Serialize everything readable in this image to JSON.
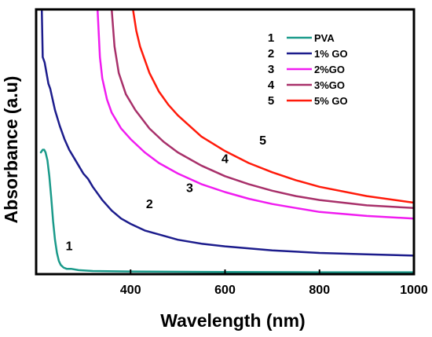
{
  "chart_data": {
    "type": "line",
    "xlabel": "Wavelength (nm)",
    "ylabel": "Absorbance (a.u)",
    "xlim": [
      200,
      1000
    ],
    "ylim": [
      0,
      1
    ],
    "x_ticks": [
      400,
      600,
      800,
      1000
    ],
    "y_ticks_shown": false,
    "grid": false,
    "legend_position": "top-right",
    "series": [
      {
        "label": "1",
        "name": "PVA",
        "color": "#1a9a8a",
        "points": [
          [
            210,
            0.46
          ],
          [
            214,
            0.47
          ],
          [
            217,
            0.47
          ],
          [
            220,
            0.46
          ],
          [
            224,
            0.43
          ],
          [
            228,
            0.37
          ],
          [
            232,
            0.29
          ],
          [
            236,
            0.2
          ],
          [
            240,
            0.13
          ],
          [
            244,
            0.08
          ],
          [
            248,
            0.05
          ],
          [
            252,
            0.035
          ],
          [
            258,
            0.025
          ],
          [
            265,
            0.02
          ],
          [
            275,
            0.02
          ],
          [
            290,
            0.015
          ],
          [
            320,
            0.012
          ],
          [
            400,
            0.01
          ],
          [
            600,
            0.008
          ],
          [
            800,
            0.007
          ],
          [
            1000,
            0.007
          ]
        ]
      },
      {
        "label": "2",
        "name": "1% GO",
        "color": "#1c1c8c",
        "points": [
          [
            212,
            1.0
          ],
          [
            214,
            0.82
          ],
          [
            218,
            0.8
          ],
          [
            222,
            0.76
          ],
          [
            226,
            0.72
          ],
          [
            230,
            0.7
          ],
          [
            235,
            0.66
          ],
          [
            240,
            0.62
          ],
          [
            250,
            0.56
          ],
          [
            260,
            0.51
          ],
          [
            270,
            0.47
          ],
          [
            280,
            0.44
          ],
          [
            290,
            0.41
          ],
          [
            300,
            0.38
          ],
          [
            310,
            0.36
          ],
          [
            320,
            0.33
          ],
          [
            340,
            0.28
          ],
          [
            360,
            0.24
          ],
          [
            380,
            0.21
          ],
          [
            400,
            0.19
          ],
          [
            430,
            0.165
          ],
          [
            460,
            0.15
          ],
          [
            500,
            0.13
          ],
          [
            550,
            0.115
          ],
          [
            600,
            0.105
          ],
          [
            700,
            0.09
          ],
          [
            800,
            0.08
          ],
          [
            900,
            0.075
          ],
          [
            1000,
            0.07
          ]
        ]
      },
      {
        "label": "3",
        "name": "2%GO",
        "color": "#f01cf0",
        "points": [
          [
            330,
            1.0
          ],
          [
            335,
            0.82
          ],
          [
            340,
            0.74
          ],
          [
            350,
            0.66
          ],
          [
            360,
            0.61
          ],
          [
            380,
            0.55
          ],
          [
            400,
            0.51
          ],
          [
            430,
            0.46
          ],
          [
            460,
            0.42
          ],
          [
            500,
            0.38
          ],
          [
            550,
            0.34
          ],
          [
            600,
            0.31
          ],
          [
            650,
            0.285
          ],
          [
            700,
            0.265
          ],
          [
            750,
            0.25
          ],
          [
            800,
            0.235
          ],
          [
            900,
            0.22
          ],
          [
            1000,
            0.21
          ]
        ]
      },
      {
        "label": "4",
        "name": "3%GO",
        "color": "#a8306a",
        "points": [
          [
            360,
            1.0
          ],
          [
            366,
            0.86
          ],
          [
            375,
            0.76
          ],
          [
            390,
            0.68
          ],
          [
            410,
            0.62
          ],
          [
            440,
            0.55
          ],
          [
            470,
            0.5
          ],
          [
            500,
            0.46
          ],
          [
            550,
            0.41
          ],
          [
            600,
            0.37
          ],
          [
            650,
            0.34
          ],
          [
            700,
            0.315
          ],
          [
            750,
            0.295
          ],
          [
            800,
            0.28
          ],
          [
            900,
            0.26
          ],
          [
            1000,
            0.25
          ]
        ]
      },
      {
        "label": "5",
        "name": "5% GO",
        "color": "#ff1a0a",
        "points": [
          [
            405,
            1.0
          ],
          [
            412,
            0.92
          ],
          [
            420,
            0.86
          ],
          [
            440,
            0.76
          ],
          [
            460,
            0.69
          ],
          [
            480,
            0.64
          ],
          [
            500,
            0.6
          ],
          [
            550,
            0.52
          ],
          [
            600,
            0.465
          ],
          [
            650,
            0.42
          ],
          [
            700,
            0.385
          ],
          [
            750,
            0.355
          ],
          [
            800,
            0.33
          ],
          [
            900,
            0.295
          ],
          [
            1000,
            0.27
          ]
        ]
      }
    ],
    "legend": [
      {
        "num": "1",
        "name": "PVA"
      },
      {
        "num": "2",
        "name": "1% GO"
      },
      {
        "num": "3",
        "name": "2%GO"
      },
      {
        "num": "4",
        "name": "3%GO"
      },
      {
        "num": "5",
        "name": "5% GO"
      }
    ]
  }
}
